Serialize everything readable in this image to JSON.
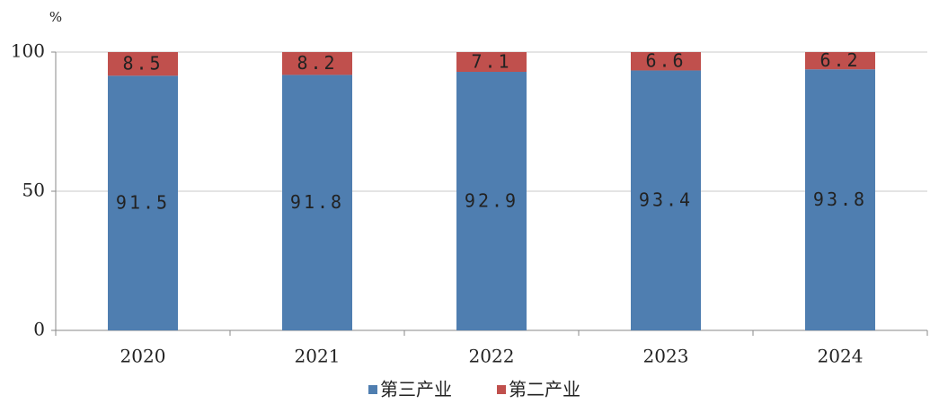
{
  "chart_data": {
    "type": "stacked_bar",
    "y_label": "%",
    "categories": [
      "2020",
      "2021",
      "2022",
      "2023",
      "2024"
    ],
    "series": [
      {
        "name": "第三产业",
        "color": "#4f7eb0",
        "values": [
          91.5,
          91.8,
          92.9,
          93.4,
          93.8
        ]
      },
      {
        "name": "第二产业",
        "color": "#c0504d",
        "values": [
          8.5,
          8.2,
          7.1,
          6.6,
          6.2
        ]
      }
    ],
    "ylim": [
      0,
      100
    ],
    "yticks": [
      0,
      50,
      100
    ],
    "grid": true
  }
}
